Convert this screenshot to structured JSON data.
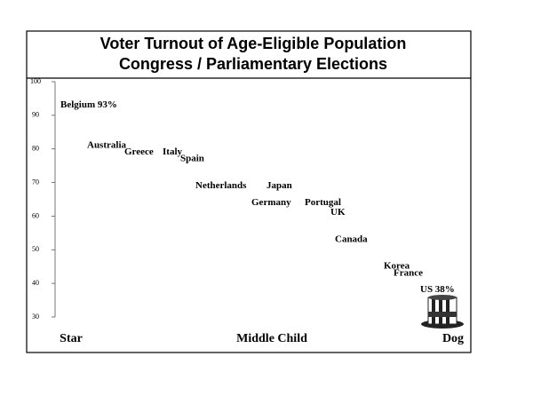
{
  "chart_data": {
    "type": "scatter",
    "title": "Voter Turnout of Age-Eligible Population",
    "subtitle": "Congress /  Parliamentary Elections",
    "categories": [
      "Belgium 93%",
      "Australia",
      "Greece",
      "Italy",
      "Spain",
      "Netherlands",
      "Japan",
      "Germany",
      "Portugal",
      "UK",
      "Canada",
      "Korea",
      "France",
      "US 38%"
    ],
    "values": [
      93,
      81,
      79,
      79,
      77,
      69,
      69,
      64,
      64,
      61,
      53,
      45,
      43,
      38
    ],
    "ylim": [
      30,
      100
    ],
    "yticks": [
      30,
      40,
      50,
      60,
      70,
      80,
      90,
      100
    ],
    "x_labels": [
      "Star",
      "Middle Child",
      "Dog"
    ],
    "color": "#000000"
  }
}
